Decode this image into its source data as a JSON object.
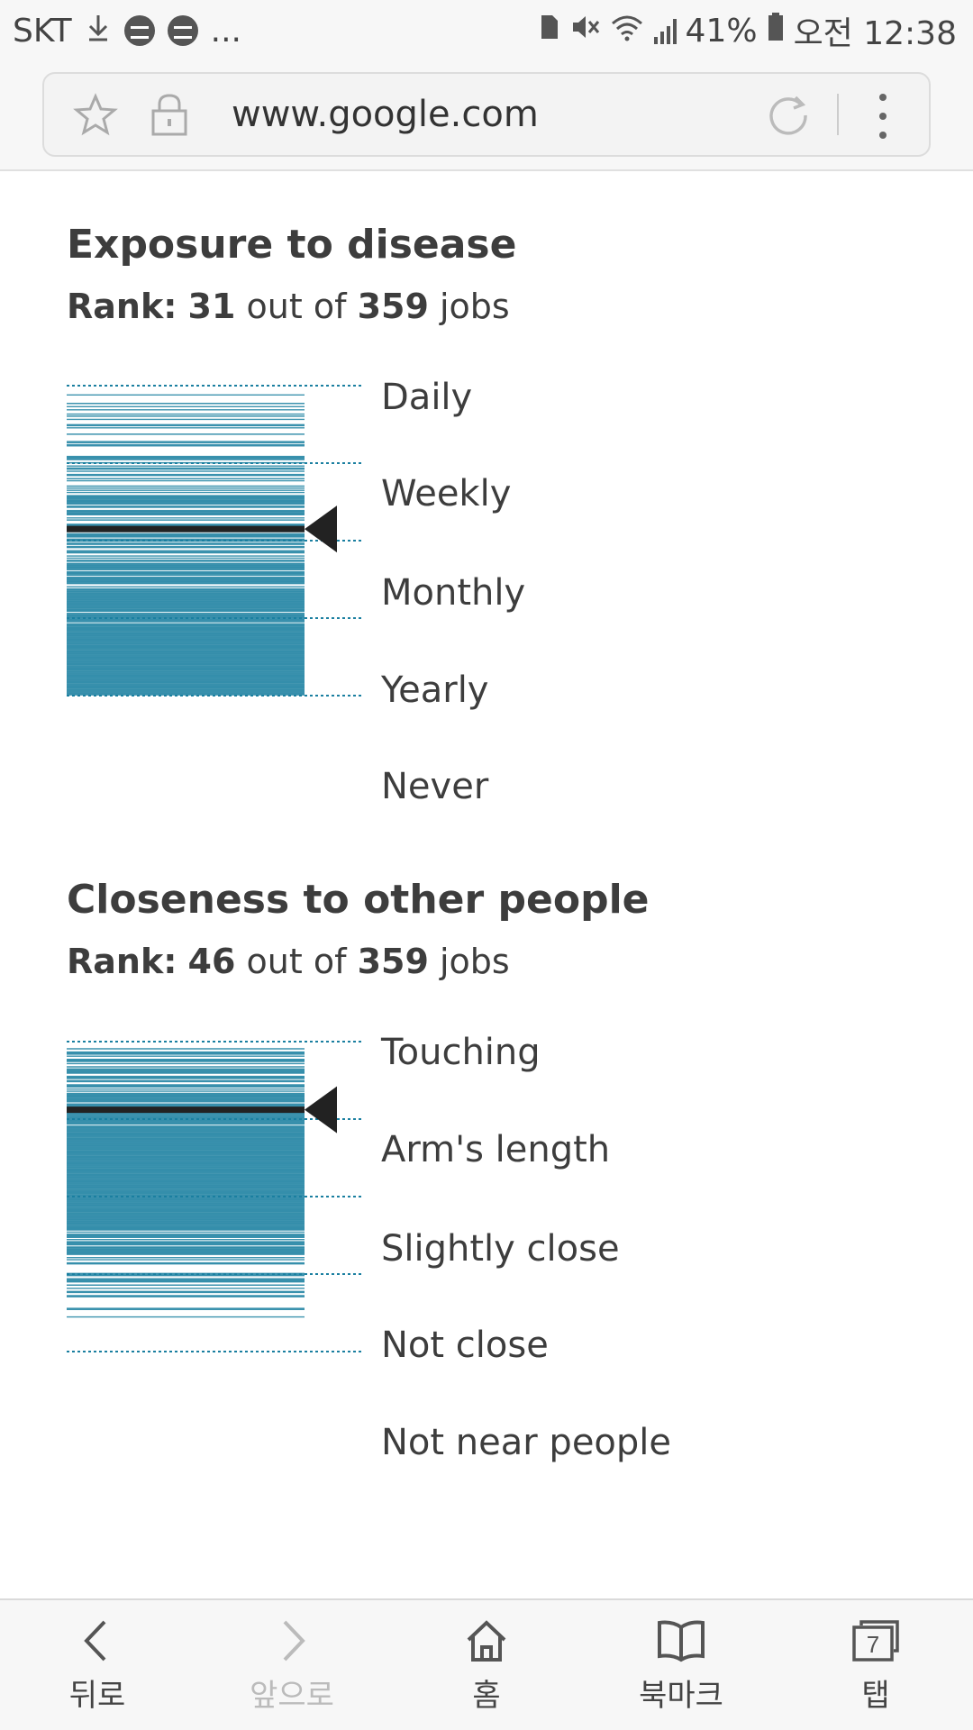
{
  "status_bar": {
    "carrier": "SKT",
    "ellipsis": "...",
    "battery": "41%",
    "time": "오전 12:38"
  },
  "browser": {
    "url": "www.google.com"
  },
  "sections": [
    {
      "title": "Exposure to disease",
      "rank_prefix": "Rank:",
      "rank": "31",
      "rank_mid": "out of",
      "total": "359",
      "rank_suffix": "jobs",
      "levels": [
        "Daily",
        "Weekly",
        "Monthly",
        "Yearly",
        "Never"
      ]
    },
    {
      "title": "Closeness to other people",
      "rank_prefix": "Rank:",
      "rank": "46",
      "rank_mid": "out of",
      "total": "359",
      "rank_suffix": "jobs",
      "levels": [
        "Touching",
        "Arm's length",
        "Slightly close",
        "Not close",
        "Not near people"
      ]
    }
  ],
  "chart_data": [
    {
      "type": "strip",
      "title": "Exposure to disease",
      "levels": [
        "Daily",
        "Weekly",
        "Monthly",
        "Yearly",
        "Never"
      ],
      "scale": [
        4,
        0
      ],
      "highlighted_value": 2.15,
      "highlighted_rank": 31,
      "total_jobs": 359,
      "colors": {
        "lines": "#1a7fa0",
        "highlight": "#222222",
        "guides": "#1a7fa0"
      }
    },
    {
      "type": "strip",
      "title": "Closeness to other people",
      "levels": [
        "Touching",
        "Arm's length",
        "Slightly close",
        "Not close",
        "Not near people"
      ],
      "scale": [
        4,
        0
      ],
      "highlighted_value": 3.12,
      "highlighted_rank": 46,
      "total_jobs": 359,
      "colors": {
        "lines": "#1a7fa0",
        "highlight": "#222222",
        "guides": "#1a7fa0"
      }
    }
  ],
  "bottom_nav": {
    "back": "뒤로",
    "forward": "앞으로",
    "home": "홈",
    "bookmarks": "북마크",
    "tabs": "탭",
    "tab_count": "7"
  }
}
